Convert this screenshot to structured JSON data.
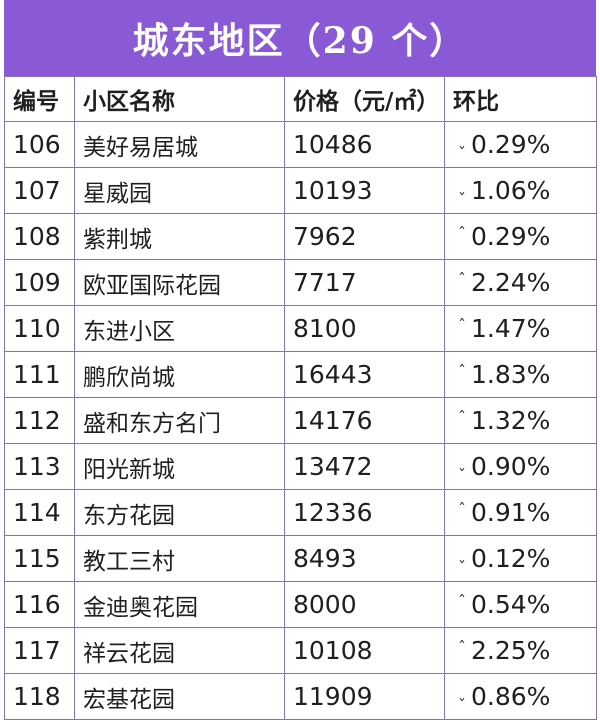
{
  "title": "城东地区（29 个）",
  "headers": [
    "编号",
    "小区名称",
    "价格（元/㎡）",
    "环比"
  ],
  "rows": [
    {
      "id": "106",
      "name": "美好易居城",
      "price": "10486",
      "dir": "down",
      "change": "0.29%"
    },
    {
      "id": "107",
      "name": "星威园",
      "price": "10193",
      "dir": "down",
      "change": "1.06%"
    },
    {
      "id": "108",
      "name": "紫荆城",
      "price": "7962",
      "dir": "up",
      "change": "0.29%"
    },
    {
      "id": "109",
      "name": "欧亚国际花园",
      "price": "7717",
      "dir": "up",
      "change": "2.24%"
    },
    {
      "id": "110",
      "name": "东进小区",
      "price": "8100",
      "dir": "up",
      "change": "1.47%"
    },
    {
      "id": "111",
      "name": "鹏欣尚城",
      "price": "16443",
      "dir": "up",
      "change": "1.83%"
    },
    {
      "id": "112",
      "name": "盛和东方名门",
      "price": "14176",
      "dir": "up",
      "change": "1.32%"
    },
    {
      "id": "113",
      "name": "阳光新城",
      "price": "13472",
      "dir": "down",
      "change": "0.90%"
    },
    {
      "id": "114",
      "name": "东方花园",
      "price": "12336",
      "dir": "up",
      "change": "0.91%"
    },
    {
      "id": "115",
      "name": "教工三村",
      "price": "8493",
      "dir": "down",
      "change": "0.12%"
    },
    {
      "id": "116",
      "name": "金迪奥花园",
      "price": "8000",
      "dir": "up",
      "change": "0.54%"
    },
    {
      "id": "117",
      "name": "祥云花园",
      "price": "10108",
      "dir": "up",
      "change": "2.25%"
    },
    {
      "id": "118",
      "name": "宏基花园",
      "price": "11909",
      "dir": "down",
      "change": "0.86%"
    }
  ],
  "colors": {
    "banner": "#8a5ad6",
    "border": "#8a72b0"
  }
}
